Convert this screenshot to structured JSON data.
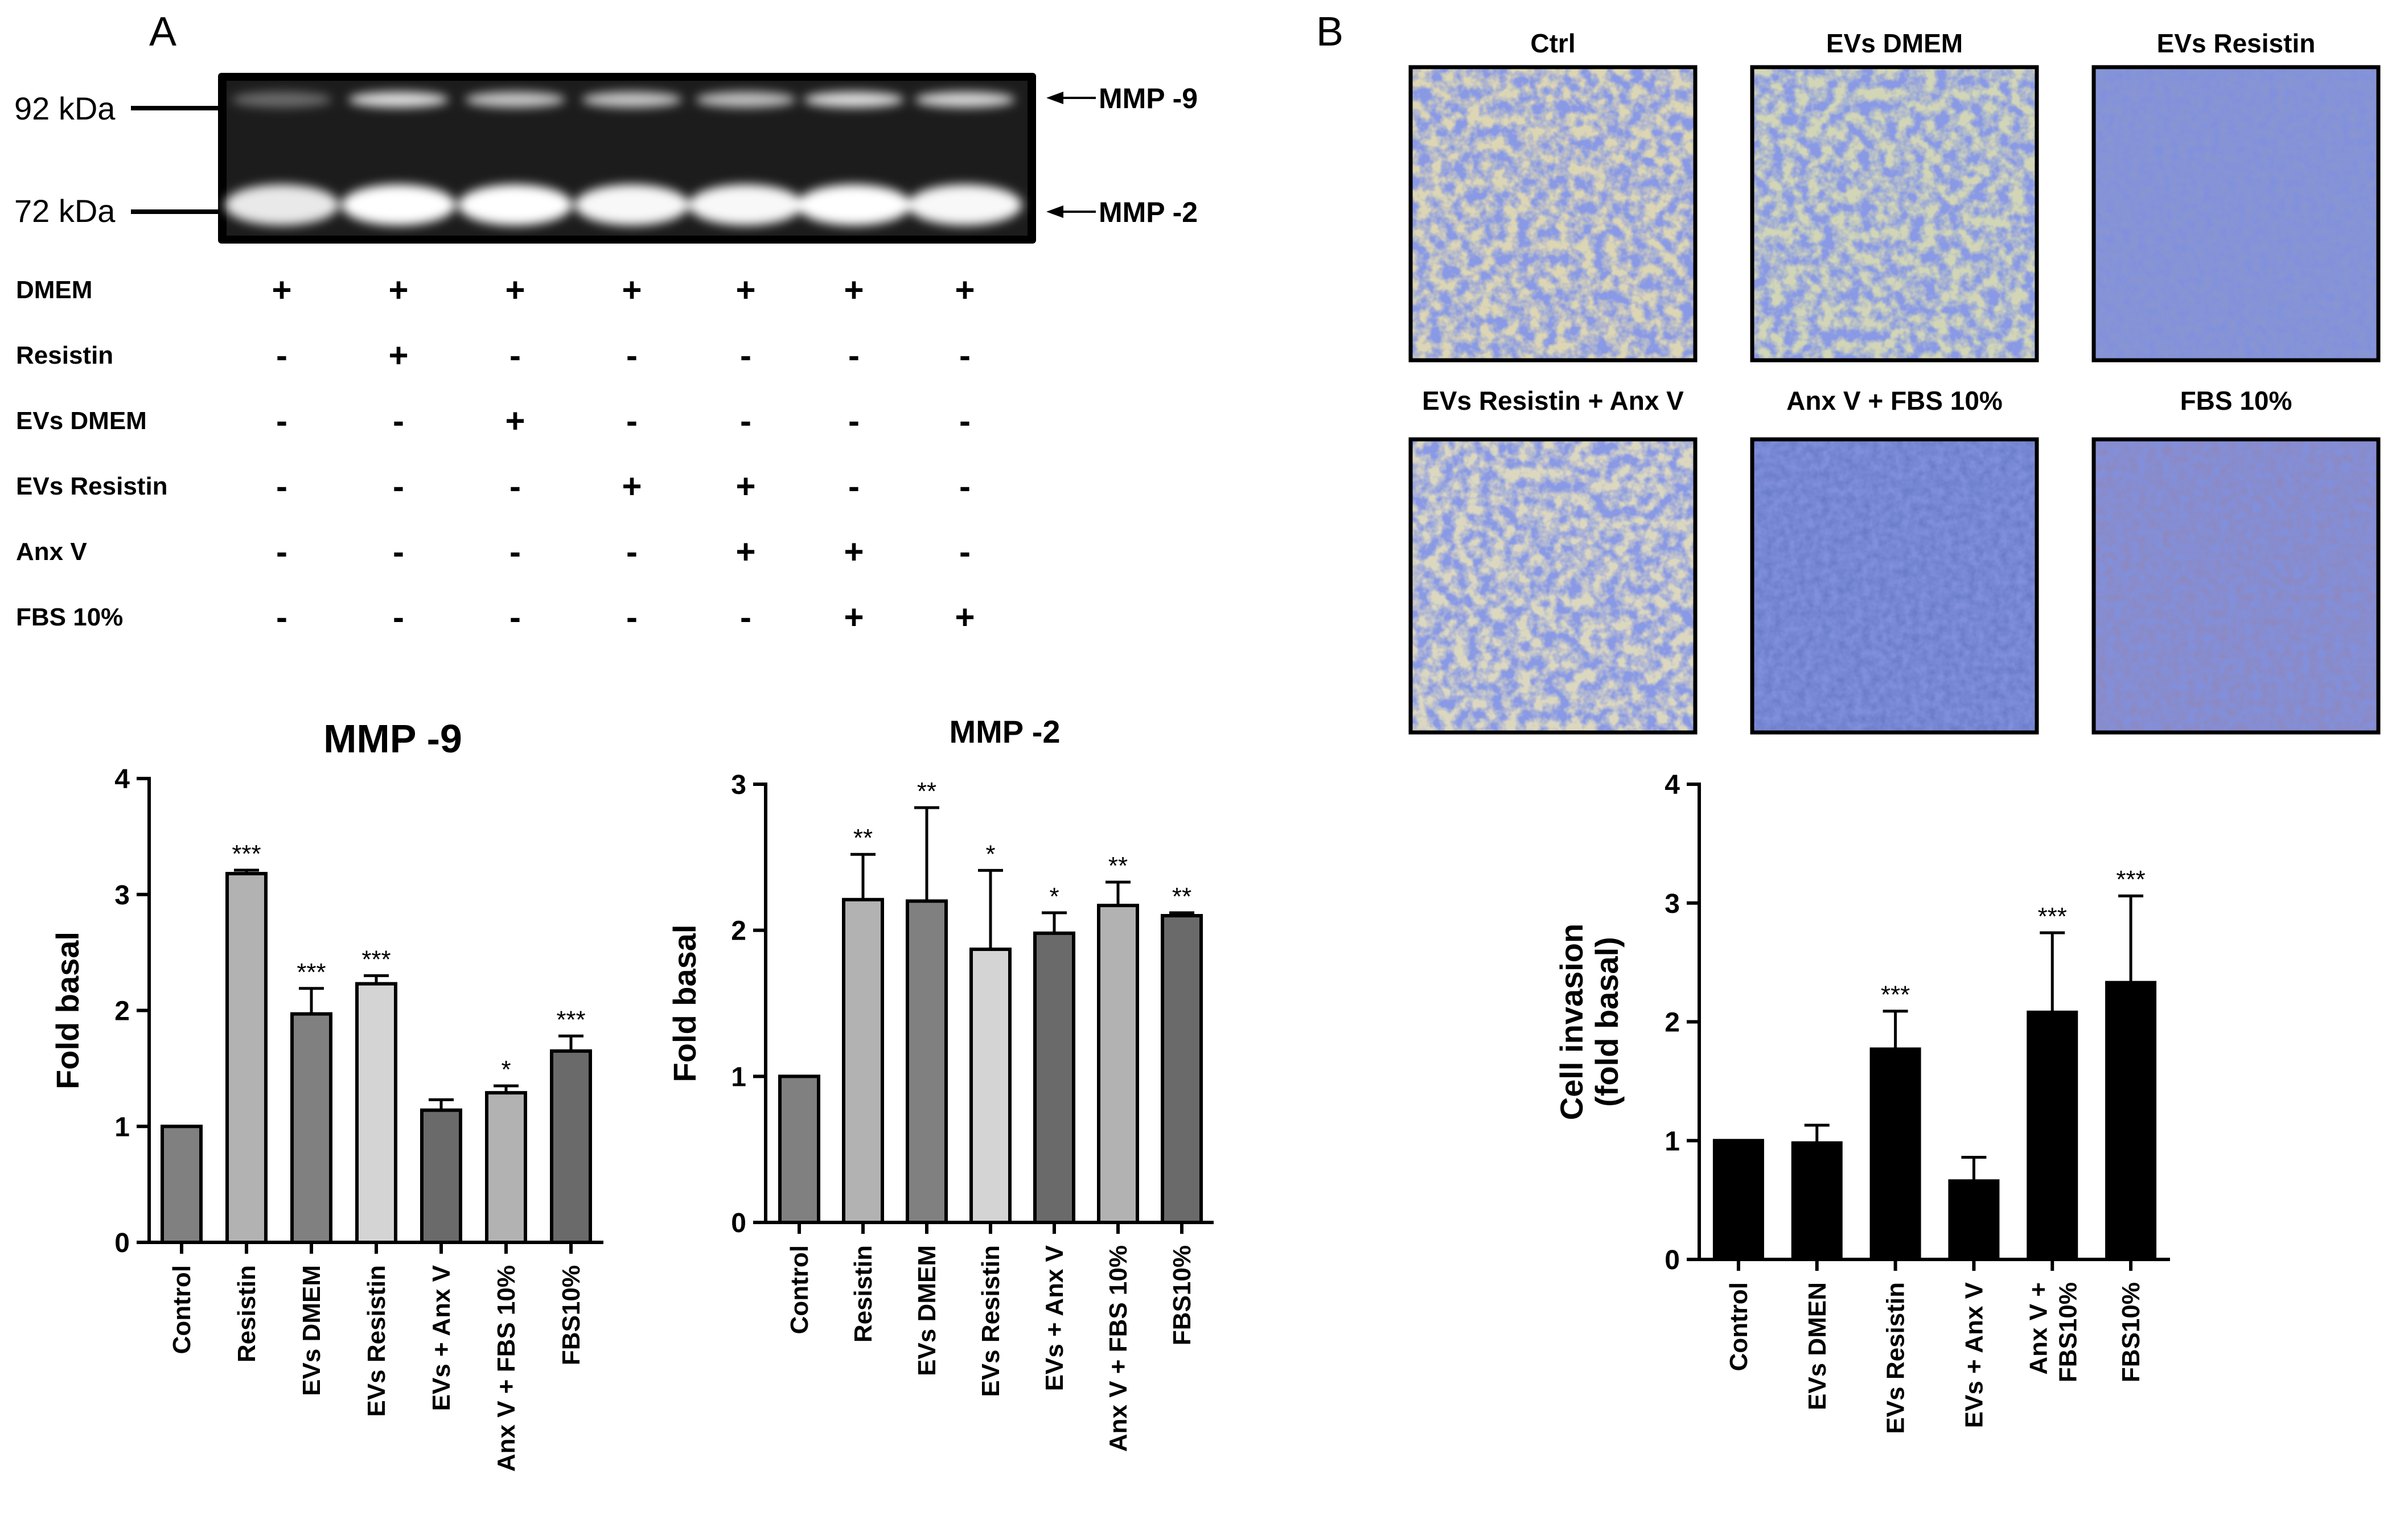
{
  "panel_a": {
    "letter": "A",
    "gel": {
      "marker_high": "92 kDa",
      "marker_low": "72 kDa",
      "band_high": "MMP -9",
      "band_low": "MMP -2"
    },
    "table": {
      "rows": [
        {
          "label": "DMEM",
          "signs": [
            "+",
            "+",
            "+",
            "+",
            "+",
            "+",
            "+"
          ]
        },
        {
          "label": "Resistin",
          "signs": [
            "-",
            "+",
            "-",
            "-",
            "-",
            "-",
            "-"
          ]
        },
        {
          "label": "EVs DMEM",
          "signs": [
            "-",
            "-",
            "+",
            "-",
            "-",
            "-",
            "-"
          ]
        },
        {
          "label": "EVs Resistin",
          "signs": [
            "-",
            "-",
            "-",
            "+",
            "+",
            "-",
            "-"
          ]
        },
        {
          "label": "Anx V",
          "signs": [
            "-",
            "-",
            "-",
            "-",
            "+",
            "+",
            "-"
          ]
        },
        {
          "label": "FBS 10%",
          "signs": [
            "-",
            "-",
            "-",
            "-",
            "-",
            "+",
            "+"
          ]
        }
      ]
    }
  },
  "panel_b": {
    "letter": "B",
    "micrographs": [
      {
        "label": "Ctrl"
      },
      {
        "label": "EVs DMEM"
      },
      {
        "label": "EVs Resistin"
      },
      {
        "label": "EVs Resistin + Anx V"
      },
      {
        "label": "Anx V + FBS 10%"
      },
      {
        "label": "FBS 10%"
      }
    ]
  },
  "chart_data": [
    {
      "type": "bar",
      "title": "MMP -9",
      "ylabel": "Fold  basal",
      "ylim": [
        0,
        4
      ],
      "yticks": [
        "0",
        "1",
        "2",
        "3",
        "4"
      ],
      "categories": [
        "Control",
        "Resistin",
        "EVs DMEM",
        "EVs Resistin",
        "EVs + Anx V",
        "Anx V + FBS 10%",
        "FBS10%"
      ],
      "values": [
        1.0,
        3.18,
        1.97,
        2.23,
        1.14,
        1.29,
        1.65
      ],
      "errors": [
        0,
        0.03,
        0.22,
        0.07,
        0.09,
        0.06,
        0.13
      ],
      "significance": [
        "",
        "***",
        "***",
        "***",
        "",
        "*",
        "***"
      ],
      "colors": [
        "#808080",
        "#b2b2b2",
        "#808080",
        "#d4d4d4",
        "#6a6a6a",
        "#b2b2b2",
        "#6a6a6a"
      ]
    },
    {
      "type": "bar",
      "title": "MMP -2",
      "ylabel": "Fold  basal",
      "ylim": [
        0,
        3
      ],
      "yticks": [
        "0",
        "1",
        "2",
        "3"
      ],
      "categories": [
        "Control",
        "Resistin",
        "EVs DMEM",
        "EVs Resistin",
        "EVs + Anx V",
        "Anx V + FBS 10%",
        "FBS10%"
      ],
      "values": [
        1.0,
        2.21,
        2.2,
        1.87,
        1.98,
        2.17,
        2.1
      ],
      "errors": [
        0,
        0.31,
        0.64,
        0.54,
        0.14,
        0.16,
        0.02
      ],
      "significance": [
        "",
        "**",
        "**",
        "*",
        "*",
        "**",
        "**"
      ],
      "colors": [
        "#808080",
        "#b2b2b2",
        "#808080",
        "#d4d4d4",
        "#6a6a6a",
        "#b2b2b2",
        "#6a6a6a"
      ]
    },
    {
      "type": "bar",
      "title": "",
      "ylabel": "Cell invasion\n(fold basal)",
      "ylim": [
        0,
        4
      ],
      "yticks": [
        "0",
        "1",
        "2",
        "3",
        "4"
      ],
      "categories": [
        "Control",
        "EVs DMEN",
        "EVs Resistin",
        "EVs + Anx V",
        "Anx V +\nFBS10%",
        "FBS10%"
      ],
      "values": [
        1.0,
        0.98,
        1.77,
        0.66,
        2.08,
        2.33
      ],
      "errors": [
        0,
        0.15,
        0.32,
        0.2,
        0.67,
        0.73
      ],
      "significance": [
        "",
        "",
        "***",
        "",
        "***",
        "***"
      ],
      "colors": [
        "#000000",
        "#000000",
        "#000000",
        "#000000",
        "#000000",
        "#000000"
      ]
    }
  ]
}
